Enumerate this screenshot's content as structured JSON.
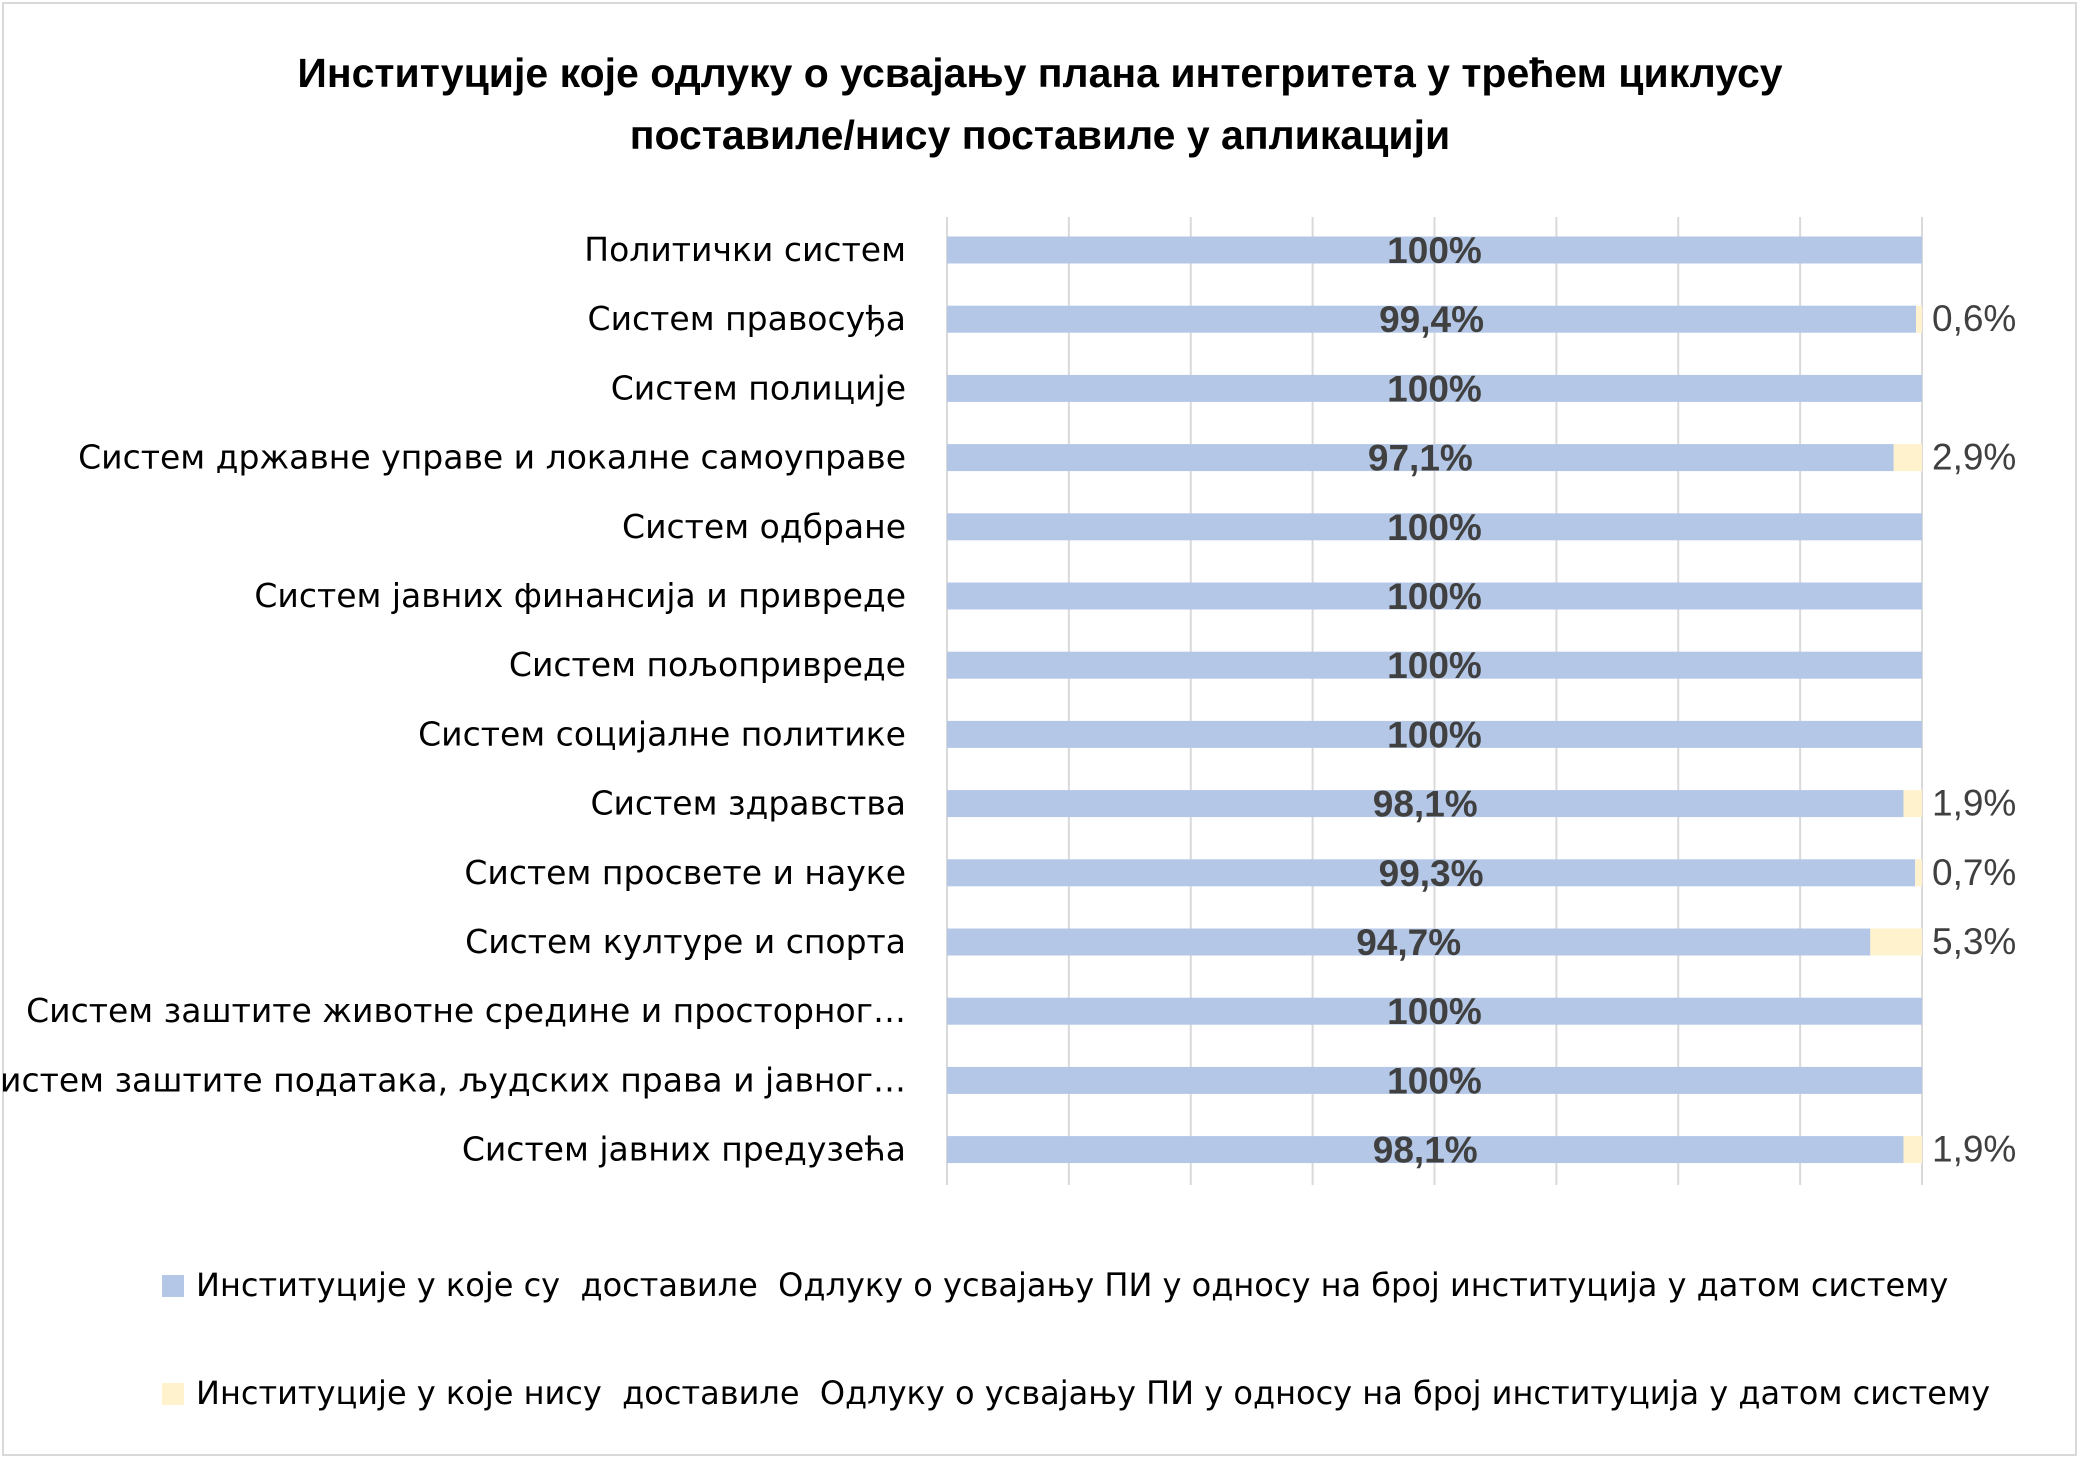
{
  "chart_data": {
    "type": "bar",
    "orientation": "horizontal",
    "stacked": true,
    "title": "Институције које одлуку о усвајању плана интегритета у трећем циклусу поставиле/нису поставиле у апликацији",
    "title_lines": [
      "Институције које одлуку о усвајању плана интегритета у трећем циклусу",
      "поставиле/нису поставиле у апликацији"
    ],
    "categories": [
      "Политички систем",
      "Систем правосуђа",
      "Систем полиције",
      "Систем државне управе и локалне самоуправе",
      "Систем одбране",
      "Систем јавних финансија и привреде",
      "Систем пољопривреде",
      "Систем социјалне политике",
      "Систем здравства",
      "Систем просвете и науке",
      "Систем културе и спорта",
      "Систем заштите животне средине и просторног…",
      "Систем заштите података, људских права и јавног…",
      "Систем јавних предузећа"
    ],
    "series": [
      {
        "name": "Институције у које су  доставиле  Одлуку о усвајању ПИ у односу на број институција у датом систему",
        "color": "#b4c7e7",
        "values": [
          100,
          99.4,
          100,
          97.1,
          100,
          100,
          100,
          100,
          98.1,
          99.3,
          94.7,
          100,
          100,
          98.1
        ],
        "labels": [
          "100%",
          "99,4%",
          "100%",
          "97,1%",
          "100%",
          "100%",
          "100%",
          "100%",
          "98,1%",
          "99,3%",
          "94,7%",
          "100%",
          "100%",
          "98,1%"
        ]
      },
      {
        "name": "Институције у које нису  доставиле  Одлуку о усвајању ПИ у односу на број институција у датом систему",
        "color": "#fff2cc",
        "values": [
          0,
          0.6,
          0,
          2.9,
          0,
          0,
          0,
          0,
          1.9,
          0.7,
          5.3,
          0,
          0,
          1.9
        ],
        "labels": [
          "",
          "0,6%",
          "",
          "2,9%",
          "",
          "",
          "",
          "",
          "1,9%",
          "0,7%",
          "5,3%",
          "",
          "",
          "1,9%"
        ]
      }
    ],
    "xlim": [
      0,
      100
    ],
    "grid": true,
    "legend_position": "bottom"
  }
}
